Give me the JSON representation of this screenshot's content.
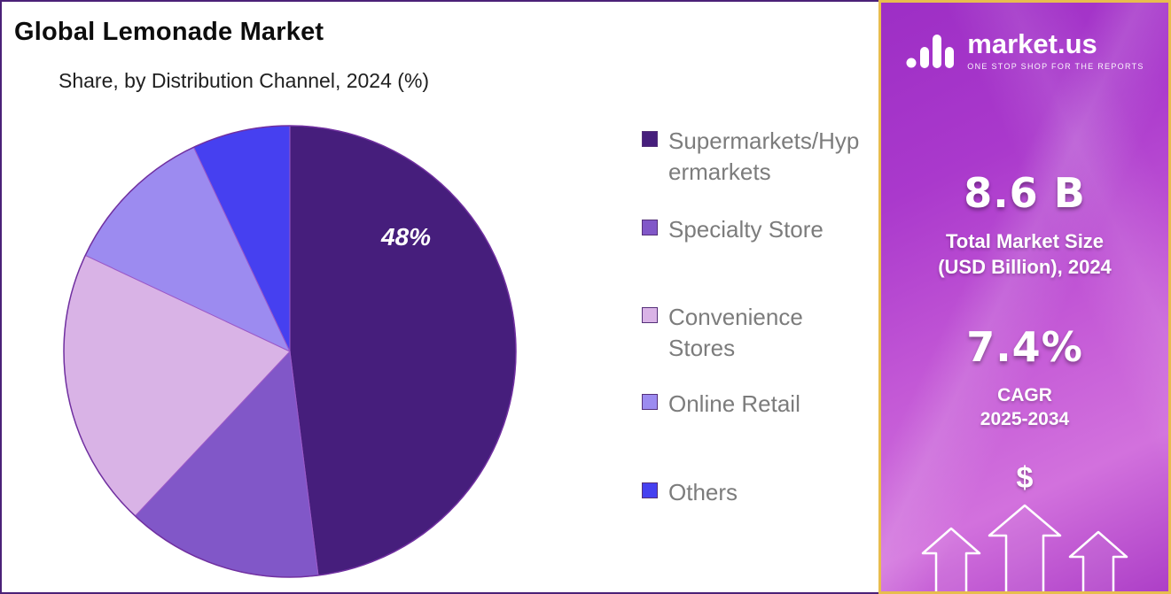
{
  "header": {
    "title": "Global Lemonade Market",
    "subtitle": "Share, by Distribution Channel, 2024 (%)"
  },
  "chart_data": {
    "type": "pie",
    "title": "Global Lemonade Market",
    "subtitle": "Share, by Distribution Channel, 2024 (%)",
    "unit": "%",
    "categories": [
      "Supermarkets/Hypermarkets",
      "Specialty Store",
      "Convenience Stores",
      "Online Retail",
      "Others"
    ],
    "values": [
      48,
      14,
      20,
      11,
      7
    ],
    "colors": [
      "#461e7c",
      "#8157c8",
      "#d9b3e6",
      "#9c8bf0",
      "#4640f0"
    ],
    "data_labels": [
      {
        "category": "Supermarkets/Hypermarkets",
        "text": "48%"
      }
    ],
    "legend_position": "right",
    "start_angle": 0,
    "direction": "clockwise",
    "rim_color": "#7030a0"
  },
  "side_panel": {
    "brand": {
      "name": "market.us",
      "tagline": "ONE STOP SHOP FOR THE REPORTS"
    },
    "market_size": {
      "value": "8.6 B",
      "label_line1": "Total Market Size",
      "label_line2": "(USD Billion), 2024"
    },
    "cagr": {
      "value": "7.4%",
      "label_line1": "CAGR",
      "label_line2": "2025-2034"
    },
    "dollar_symbol": "$"
  }
}
